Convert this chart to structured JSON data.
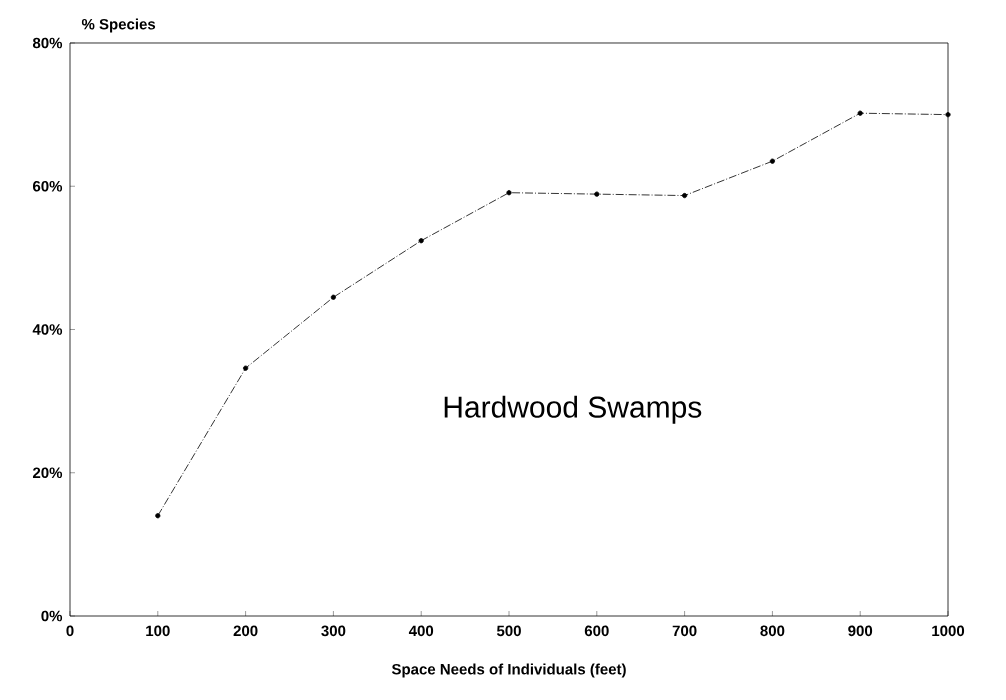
{
  "chart_data": {
    "type": "line",
    "xlabel": "Space Needs of Individuals (feet)",
    "ylabel": "% Species",
    "x": [
      100,
      200,
      300,
      400,
      500,
      600,
      700,
      800,
      900,
      1000
    ],
    "series": [
      {
        "color": "#000000",
        "values": [
          14,
          34.6,
          44.5,
          52.4,
          59.1,
          58.9,
          58.7,
          63.5,
          70.2,
          70.0
        ]
      }
    ],
    "xlim": [
      0,
      1000
    ],
    "xticks": [
      0,
      100,
      200,
      300,
      400,
      500,
      600,
      700,
      800,
      900,
      1000
    ],
    "ylim": [
      0,
      80
    ],
    "yticks": [
      {
        "value": 0,
        "label": "0%"
      },
      {
        "value": 20,
        "label": "20%"
      },
      {
        "value": 40,
        "label": "40%"
      },
      {
        "value": 60,
        "label": "60%"
      },
      {
        "value": 80,
        "label": "80%"
      }
    ],
    "annotations": [
      "Hardwood Swamps"
    ],
    "grid": false,
    "marker": "circle",
    "line_style": "dashed"
  }
}
